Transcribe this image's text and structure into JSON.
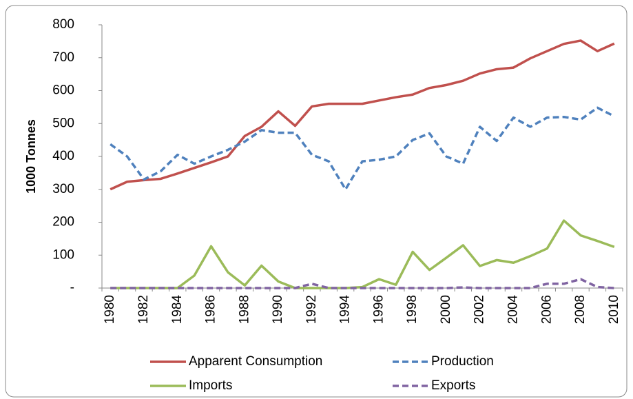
{
  "chart_data": {
    "type": "line",
    "y_label": "1000 Tonnes",
    "categories": [
      "1980",
      null,
      "1982",
      null,
      "1984",
      null,
      "1986",
      null,
      "1988",
      null,
      "1990",
      null,
      "1992",
      null,
      "1994",
      null,
      "1996",
      null,
      "1998",
      null,
      "2000",
      null,
      "2002",
      null,
      "2004",
      null,
      "2006",
      null,
      "2008",
      null,
      "2010"
    ],
    "series": [
      {
        "name": "Apparent Consumption",
        "color": "#c0504d",
        "dash": false,
        "values": [
          300,
          323,
          328,
          332,
          348,
          365,
          382,
          400,
          462,
          490,
          537,
          493,
          552,
          560,
          560,
          560,
          570,
          580,
          588,
          608,
          617,
          630,
          652,
          665,
          670,
          698,
          720,
          742,
          752,
          720,
          743
        ]
      },
      {
        "name": "Production",
        "color": "#4f81bd",
        "dash": true,
        "values": [
          437,
          400,
          330,
          355,
          405,
          378,
          400,
          420,
          445,
          480,
          472,
          472,
          405,
          385,
          300,
          385,
          390,
          400,
          450,
          470,
          400,
          378,
          490,
          447,
          518,
          490,
          518,
          520,
          512,
          548,
          522
        ]
      },
      {
        "name": "Imports",
        "color": "#9bbb59",
        "dash": false,
        "values": [
          0,
          0,
          0,
          0,
          0,
          38,
          127,
          48,
          8,
          68,
          20,
          0,
          0,
          0,
          0,
          3,
          27,
          10,
          110,
          55,
          92,
          130,
          67,
          85,
          77,
          97,
          120,
          205,
          160,
          143,
          125
        ]
      },
      {
        "name": "Exports",
        "color": "#8064a2",
        "dash": true,
        "values": [
          0,
          0,
          0,
          0,
          0,
          0,
          0,
          0,
          0,
          0,
          0,
          0,
          13,
          0,
          0,
          0,
          0,
          0,
          0,
          0,
          0,
          2,
          0,
          0,
          0,
          0,
          13,
          13,
          27,
          3,
          0
        ]
      }
    ],
    "ylim": [
      0,
      800
    ],
    "yticks": [
      {
        "value": 0,
        "label": "-"
      },
      100,
      200,
      300,
      400,
      500,
      600,
      700,
      800
    ],
    "grid": false,
    "legend": "bottom"
  }
}
